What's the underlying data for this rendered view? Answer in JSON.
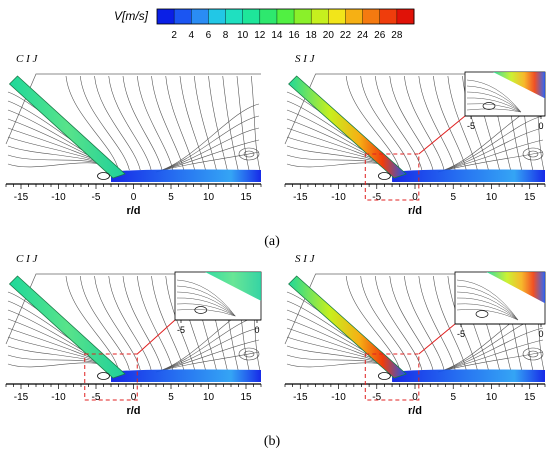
{
  "colorbar": {
    "title": "V[m/s]",
    "ticks": [
      "2",
      "4",
      "6",
      "8",
      "10",
      "12",
      "14",
      "16",
      "18",
      "20",
      "22",
      "24",
      "26",
      "28"
    ],
    "colors": [
      "#0a1fe6",
      "#1b55f2",
      "#2a8cf4",
      "#22c7e6",
      "#1fe0c0",
      "#1ee69a",
      "#2ee86e",
      "#51f042",
      "#8af02a",
      "#c6f01e",
      "#f2e51a",
      "#f6b014",
      "#f57a10",
      "#ef3d0c",
      "#e01208"
    ]
  },
  "panels": [
    {
      "label": "C I J",
      "tick_labels": [
        "-15",
        "-10",
        "-5",
        "0",
        "5",
        "10",
        "15"
      ],
      "xlabel": "r/d"
    },
    {
      "label": "S I J",
      "tick_labels": [
        "-15",
        "-10",
        "-5",
        "0",
        "5",
        "10",
        "15"
      ],
      "xlabel": "r/d",
      "inset_ticks": [
        "-5",
        "0"
      ]
    },
    {
      "label": "C I J",
      "tick_labels": [
        "-15",
        "-10",
        "-5",
        "0",
        "5",
        "10",
        "15"
      ],
      "xlabel": "r/d",
      "inset_ticks": [
        "-5",
        "0"
      ]
    },
    {
      "label": "S I J",
      "tick_labels": [
        "-15",
        "-10",
        "-5",
        "0",
        "5",
        "10",
        "15"
      ],
      "xlabel": "r/d",
      "inset_ticks": [
        "-5",
        "0"
      ]
    }
  ],
  "captions": {
    "a": "(a)",
    "b": "(b)"
  },
  "colors": {
    "jet": "#3cd78c",
    "jet_edge": "#1a7a48",
    "wall_jet": "#1e5ee8",
    "streamline": "#555555",
    "highlight": "#e02020"
  }
}
